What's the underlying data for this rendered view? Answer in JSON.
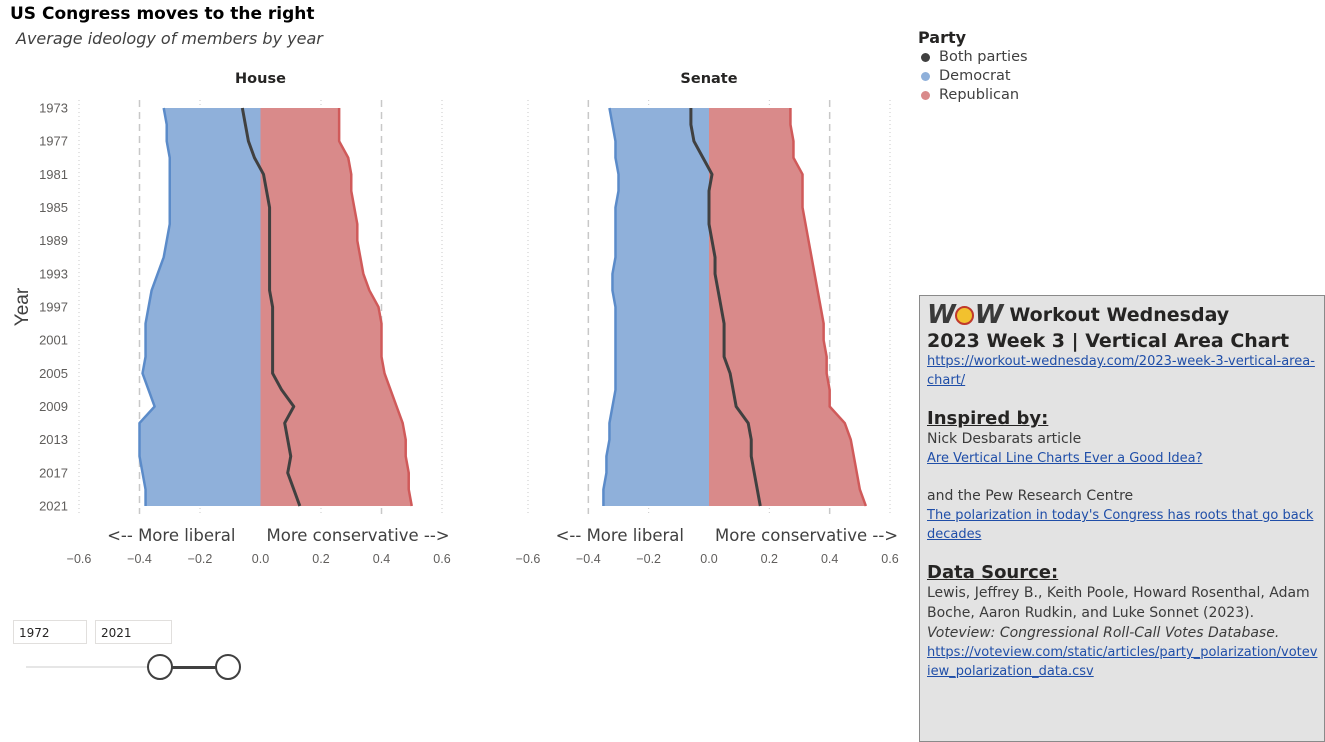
{
  "header": {
    "title": "US Congress moves to the right",
    "subtitle": "Average ideology of members by year"
  },
  "legend": {
    "title": "Party",
    "items": [
      {
        "label": "Both parties",
        "color": "#404040"
      },
      {
        "label": "Democrat",
        "color": "#8fb0da"
      },
      {
        "label": "Republican",
        "color": "#d98a8a"
      }
    ]
  },
  "slicer": {
    "start": "1972",
    "end": "2021"
  },
  "info": {
    "logo_text": "WOW",
    "brand": "Workout Wednesday",
    "week_title": "2023 Week 3 | Vertical Area Chart",
    "week_url": "https://workout-wednesday.com/2023-week-3-vertical-area-chart/",
    "inspired_heading": "Inspired by:",
    "inspired_author": "Nick Desbarats article",
    "inspired_link": "Are Vertical Line Charts Ever a Good Idea?",
    "pew_text": "and the Pew Research Centre",
    "pew_link": "The polarization in today's Congress has roots that go back decades",
    "source_heading": "Data Source:",
    "source_text_1": "Lewis, Jeffrey B., Keith Poole, Howard Rosenthal, Adam Boche, Aaron Rudkin, and Luke Sonnet (2023). ",
    "source_text_italic": "Voteview: Congressional Roll-Call Votes Database.",
    "source_url": "https://voteview.com/static/articles/party_polarization/voteview_polarization_data.csv"
  },
  "chart_data": [
    {
      "type": "area",
      "title": "House",
      "ylabel": "Year",
      "annotation_left": "<-- More liberal",
      "annotation_right": "More conservative -->",
      "xlim": [
        -0.6,
        0.6
      ],
      "xticks": [
        -0.6,
        -0.4,
        -0.2,
        0.0,
        0.2,
        0.4,
        0.6
      ],
      "reference_lines": [
        -0.4,
        0.4
      ],
      "ytick_labels": [
        "1973",
        "1977",
        "1981",
        "1985",
        "1989",
        "1993",
        "1997",
        "2001",
        "2005",
        "2009",
        "2013",
        "2017",
        "2021"
      ],
      "years": [
        1973,
        1975,
        1977,
        1979,
        1981,
        1983,
        1985,
        1987,
        1989,
        1991,
        1993,
        1995,
        1997,
        1999,
        2001,
        2003,
        2005,
        2007,
        2009,
        2011,
        2013,
        2015,
        2017,
        2019,
        2021
      ],
      "series": [
        {
          "name": "Democrat",
          "values": [
            -0.32,
            -0.31,
            -0.31,
            -0.3,
            -0.3,
            -0.3,
            -0.3,
            -0.3,
            -0.31,
            -0.32,
            -0.34,
            -0.36,
            -0.37,
            -0.38,
            -0.38,
            -0.38,
            -0.39,
            -0.37,
            -0.35,
            -0.4,
            -0.4,
            -0.4,
            -0.39,
            -0.38,
            -0.38
          ]
        },
        {
          "name": "Republican",
          "values": [
            0.26,
            0.26,
            0.26,
            0.29,
            0.3,
            0.3,
            0.31,
            0.32,
            0.32,
            0.33,
            0.34,
            0.36,
            0.39,
            0.4,
            0.4,
            0.4,
            0.41,
            0.43,
            0.45,
            0.47,
            0.48,
            0.48,
            0.49,
            0.49,
            0.5
          ]
        },
        {
          "name": "Both parties",
          "values": [
            -0.06,
            -0.05,
            -0.04,
            -0.02,
            0.01,
            0.02,
            0.03,
            0.03,
            0.03,
            0.03,
            0.03,
            0.03,
            0.04,
            0.04,
            0.04,
            0.04,
            0.04,
            0.07,
            0.11,
            0.08,
            0.09,
            0.1,
            0.09,
            0.11,
            0.13
          ]
        }
      ]
    },
    {
      "type": "area",
      "title": "Senate",
      "annotation_left": "<-- More liberal",
      "annotation_right": "More conservative -->",
      "xlim": [
        -0.6,
        0.6
      ],
      "xticks": [
        -0.6,
        -0.4,
        -0.2,
        0.0,
        0.2,
        0.4,
        0.6
      ],
      "reference_lines": [
        -0.4,
        0.4
      ],
      "years": [
        1973,
        1975,
        1977,
        1979,
        1981,
        1983,
        1985,
        1987,
        1989,
        1991,
        1993,
        1995,
        1997,
        1999,
        2001,
        2003,
        2005,
        2007,
        2009,
        2011,
        2013,
        2015,
        2017,
        2019,
        2021
      ],
      "series": [
        {
          "name": "Democrat",
          "values": [
            -0.33,
            -0.32,
            -0.31,
            -0.31,
            -0.3,
            -0.3,
            -0.31,
            -0.31,
            -0.31,
            -0.31,
            -0.32,
            -0.32,
            -0.31,
            -0.31,
            -0.31,
            -0.31,
            -0.31,
            -0.31,
            -0.32,
            -0.33,
            -0.33,
            -0.34,
            -0.34,
            -0.35,
            -0.35
          ]
        },
        {
          "name": "Republican",
          "values": [
            0.27,
            0.27,
            0.28,
            0.28,
            0.31,
            0.31,
            0.31,
            0.32,
            0.33,
            0.34,
            0.35,
            0.36,
            0.37,
            0.38,
            0.38,
            0.39,
            0.39,
            0.4,
            0.4,
            0.45,
            0.47,
            0.48,
            0.49,
            0.5,
            0.52
          ]
        },
        {
          "name": "Both parties",
          "values": [
            -0.06,
            -0.06,
            -0.05,
            -0.02,
            0.01,
            0.0,
            0.0,
            0.0,
            0.01,
            0.02,
            0.02,
            0.03,
            0.04,
            0.05,
            0.05,
            0.05,
            0.07,
            0.08,
            0.09,
            0.13,
            0.14,
            0.14,
            0.15,
            0.16,
            0.17
          ]
        }
      ]
    }
  ]
}
